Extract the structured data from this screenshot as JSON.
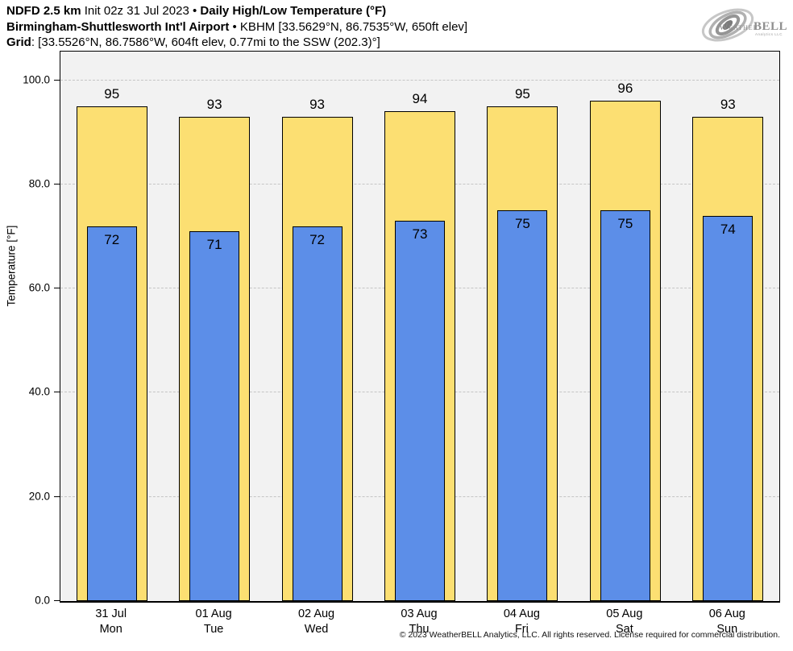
{
  "header": {
    "line1": {
      "bold1": "NDFD 2.5 km",
      "regular": " Init 02z 31 Jul 2023 • ",
      "bold2": "Daily High/Low Temperature (°F)"
    },
    "line2": {
      "bold": "Birmingham-Shuttlesworth Int'l Airport",
      "regular": " • KBHM [33.5629°N, 86.7535°W, 650ft elev]"
    },
    "line3": {
      "bold": "Grid",
      "regular": ": [33.5526°N, 86.7586°W, 604ft elev, 0.77mi to the SSW (202.3)°]"
    }
  },
  "logo": {
    "text_weather": "Weather",
    "text_bell": "BELL",
    "subtext": "Analytics LLC",
    "color": "#8f8f8f"
  },
  "chart_data": {
    "type": "bar",
    "title": "Daily High/Low Temperature (°F)",
    "categories": [
      "31 Jul",
      "01 Aug",
      "02 Aug",
      "03 Aug",
      "04 Aug",
      "05 Aug",
      "06 Aug"
    ],
    "category_sublabels": [
      "Mon",
      "Tue",
      "Wed",
      "Thu",
      "Fri",
      "Sat",
      "Sun"
    ],
    "series": [
      {
        "name": "High",
        "values": [
          95,
          93,
          93,
          94,
          95,
          96,
          93
        ],
        "color": "#fcdf72",
        "border": "#000000"
      },
      {
        "name": "Low",
        "values": [
          72,
          71,
          72,
          73,
          75,
          75,
          74
        ],
        "color": "#5c8ee8",
        "border": "#000000"
      }
    ],
    "xlabel": "",
    "ylabel": "Temperature [°F]",
    "ylim": [
      0,
      105.5
    ],
    "yticks": [
      0,
      20,
      40,
      60,
      80,
      100
    ],
    "ytick_labels": [
      "0.0",
      "20.0",
      "40.0",
      "60.0",
      "80.0",
      "100.0"
    ],
    "grid": "horizontal-dash-dot",
    "plot_bg": "#f2f2f2",
    "gridline_color": "#c5c5c5"
  },
  "footer": {
    "text": "© 2023 WeatherBELL Analytics, LLC. All rights reserved. License required for commercial distribution."
  }
}
